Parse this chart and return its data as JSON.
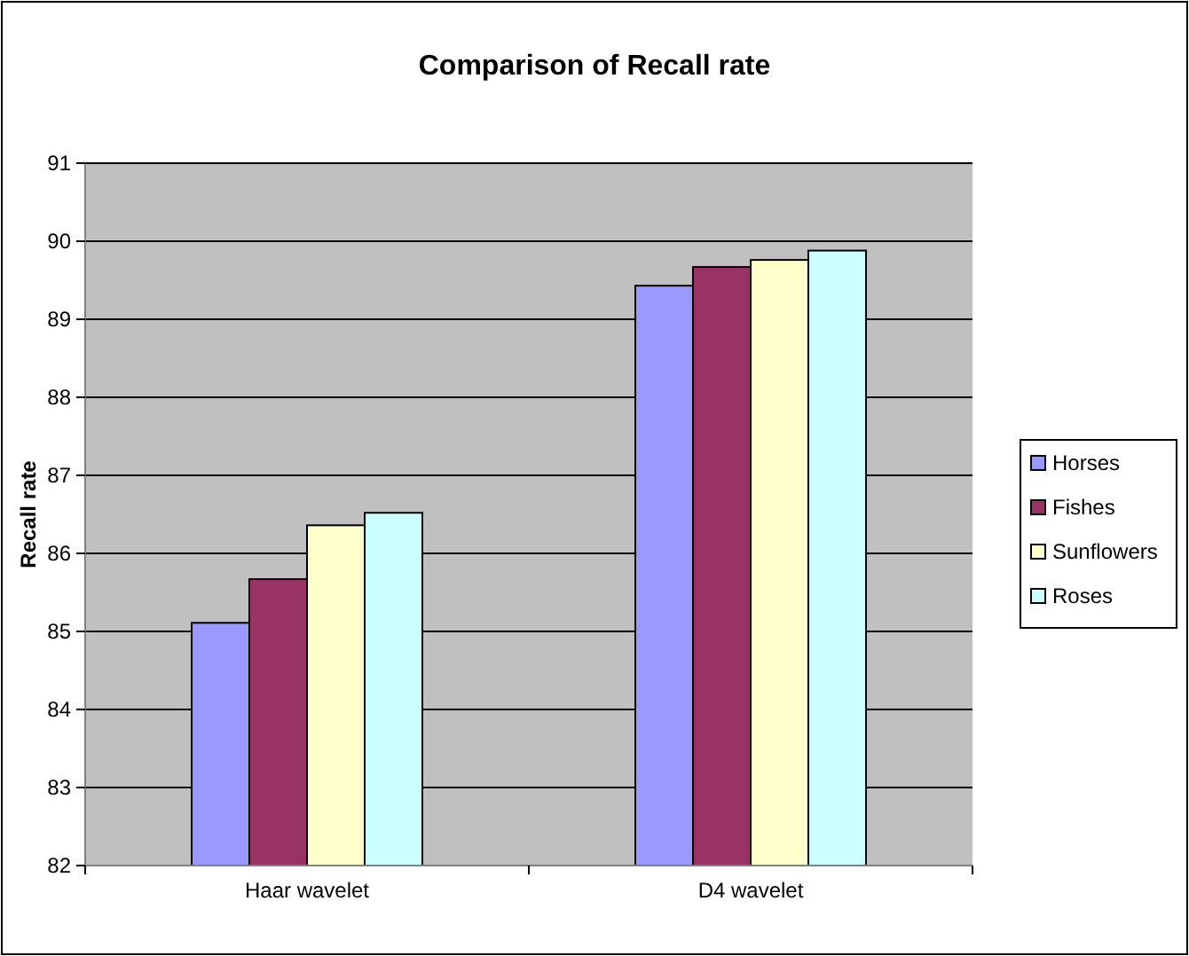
{
  "chart_data": {
    "type": "bar",
    "title": "Comparison of Recall rate",
    "ylabel": "Recall rate",
    "categories": [
      "Haar wavelet",
      "D4 wavelet"
    ],
    "series": [
      {
        "name": "Horses",
        "color": "#9999ff",
        "values": [
          85.11,
          89.43
        ]
      },
      {
        "name": "Fishes",
        "color": "#993366",
        "values": [
          85.67,
          89.67
        ]
      },
      {
        "name": "Sunflowers",
        "color": "#ffffcc",
        "values": [
          86.36,
          89.76
        ]
      },
      {
        "name": "Roses",
        "color": "#ccffff",
        "values": [
          86.52,
          89.88
        ]
      }
    ],
    "ylim": [
      82,
      91
    ],
    "yticks": [
      82,
      83,
      84,
      85,
      86,
      87,
      88,
      89,
      90,
      91
    ],
    "grid": "y",
    "legend": "right"
  }
}
